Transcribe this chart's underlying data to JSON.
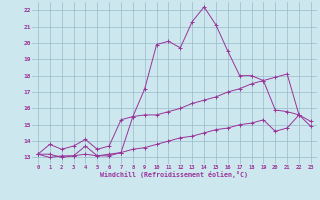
{
  "xlabel": "Windchill (Refroidissement éolien,°C)",
  "background_color": "#cce8ee",
  "grid_color": "#99bbcc",
  "line_color": "#993399",
  "xlim": [
    -0.5,
    23.5
  ],
  "ylim": [
    12.6,
    22.5
  ],
  "xticks": [
    0,
    1,
    2,
    3,
    4,
    5,
    6,
    7,
    8,
    9,
    10,
    11,
    12,
    13,
    14,
    15,
    16,
    17,
    18,
    19,
    20,
    21,
    22,
    23
  ],
  "yticks": [
    13,
    14,
    15,
    16,
    17,
    18,
    19,
    20,
    21,
    22
  ],
  "series1_x": [
    0,
    1,
    2,
    3,
    4,
    5,
    6,
    7,
    8,
    9,
    10,
    11,
    12,
    13,
    14,
    15,
    16,
    17,
    18,
    19,
    20,
    21,
    22
  ],
  "series1_y": [
    13.2,
    13.2,
    13.0,
    13.1,
    13.7,
    13.1,
    13.1,
    13.3,
    15.5,
    17.2,
    19.9,
    20.1,
    19.7,
    21.3,
    22.2,
    21.1,
    19.5,
    18.0,
    18.0,
    17.7,
    15.9,
    15.8,
    15.6
  ],
  "series2_x": [
    0,
    1,
    2,
    3,
    4,
    5,
    6,
    7,
    8,
    9,
    10,
    11,
    12,
    13,
    14,
    15,
    16,
    17,
    18,
    19,
    20,
    21,
    22,
    23
  ],
  "series2_y": [
    13.2,
    13.8,
    13.5,
    13.7,
    14.1,
    13.5,
    13.7,
    15.3,
    15.5,
    15.6,
    15.6,
    15.8,
    16.0,
    16.3,
    16.5,
    16.7,
    17.0,
    17.2,
    17.5,
    17.7,
    17.9,
    18.1,
    15.6,
    15.2
  ],
  "series3_x": [
    0,
    1,
    2,
    3,
    4,
    5,
    6,
    7,
    8,
    9,
    10,
    11,
    12,
    13,
    14,
    15,
    16,
    17,
    18,
    19,
    20,
    21,
    22,
    23
  ],
  "series3_y": [
    13.2,
    13.0,
    13.1,
    13.1,
    13.2,
    13.1,
    13.2,
    13.3,
    13.5,
    13.6,
    13.8,
    14.0,
    14.2,
    14.3,
    14.5,
    14.7,
    14.8,
    15.0,
    15.1,
    15.3,
    14.6,
    14.8,
    15.6,
    14.9
  ]
}
